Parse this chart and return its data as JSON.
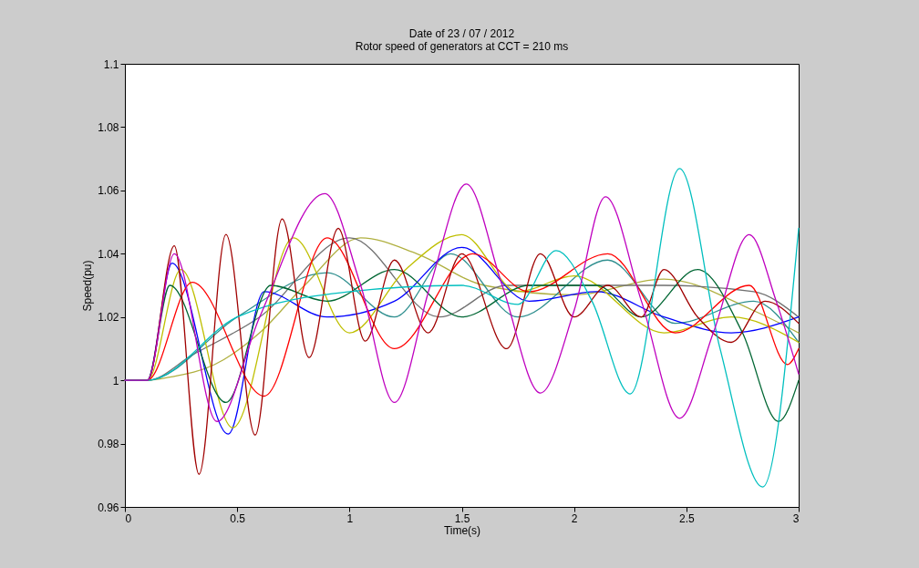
{
  "chart_data": {
    "type": "line",
    "title": "Date of  23 / 07 / 2012",
    "subtitle": "Rotor speed of  generators at CCT = 210 ms",
    "xlabel": "Time(s)",
    "ylabel": "Speed(pu)",
    "xlim": [
      0,
      3
    ],
    "ylim": [
      0.96,
      1.1
    ],
    "xticks": [
      0,
      0.5,
      1,
      1.5,
      2,
      2.5,
      3
    ],
    "yticks": [
      0.96,
      0.98,
      1,
      1.02,
      1.04,
      1.06,
      1.08,
      1.1
    ],
    "grid": false,
    "legend": false,
    "marker": "none",
    "line_style": "solid",
    "series": [
      {
        "color": "#b0b040",
        "x": [
          0,
          0.1,
          0.2,
          0.4,
          0.6,
          0.8,
          1.05,
          1.3,
          1.6,
          2.0,
          2.4,
          2.8,
          3.0
        ],
        "values": [
          1,
          1,
          1.001,
          1.005,
          1.015,
          1.03,
          1.045,
          1.04,
          1.03,
          1.027,
          1.032,
          1.022,
          1.015
        ]
      },
      {
        "color": "#707070",
        "x": [
          0,
          0.1,
          0.3,
          0.6,
          1.0,
          1.4,
          1.7,
          2.1,
          2.4,
          2.8,
          3.0
        ],
        "values": [
          1,
          1,
          1.008,
          1.02,
          1.045,
          1.02,
          1.03,
          1.03,
          1.03,
          1.028,
          1.02
        ]
      },
      {
        "color": "#2f8f8f",
        "x": [
          0,
          0.1,
          0.5,
          0.9,
          1.2,
          1.45,
          1.75,
          2.15,
          2.45,
          2.8,
          3.0
        ],
        "values": [
          1,
          1,
          1.02,
          1.034,
          1.02,
          1.04,
          1.02,
          1.038,
          1.018,
          1.025,
          1.012
        ]
      },
      {
        "color": "#0000ff",
        "x": [
          0,
          0.1,
          0.21,
          0.46,
          0.62,
          0.9,
          1.2,
          1.5,
          1.8,
          2.1,
          2.4,
          2.7,
          3.0
        ],
        "values": [
          1,
          1,
          1.037,
          0.983,
          1.028,
          1.02,
          1.025,
          1.042,
          1.025,
          1.028,
          1.02,
          1.015,
          1.02
        ]
      },
      {
        "color": "#bfbf00",
        "x": [
          0,
          0.1,
          0.25,
          0.48,
          0.75,
          1.0,
          1.25,
          1.5,
          1.75,
          2.0,
          2.4,
          2.7,
          3.0
        ],
        "values": [
          1,
          1,
          1.035,
          0.985,
          1.045,
          1.015,
          1.035,
          1.046,
          1.028,
          1.033,
          1.015,
          1.02,
          1.012
        ]
      },
      {
        "color": "#ff0000",
        "x": [
          0,
          0.1,
          0.3,
          0.62,
          0.9,
          1.2,
          1.55,
          1.8,
          2.15,
          2.45,
          2.78,
          2.95,
          3.0
        ],
        "values": [
          1,
          1,
          1.031,
          0.995,
          1.045,
          1.01,
          1.04,
          1.028,
          1.04,
          1.015,
          1.03,
          1.005,
          1.01
        ]
      },
      {
        "color": "#006633",
        "x": [
          0,
          0.1,
          0.2,
          0.45,
          0.65,
          0.9,
          1.2,
          1.5,
          1.8,
          2.1,
          2.3,
          2.55,
          2.75,
          2.91,
          3.0
        ],
        "values": [
          1,
          1,
          1.03,
          0.993,
          1.03,
          1.025,
          1.035,
          1.02,
          1.03,
          1.03,
          1.02,
          1.035,
          1.015,
          0.987,
          1.0
        ]
      },
      {
        "color": "#a00000",
        "x": [
          0,
          0.1,
          0.22,
          0.33,
          0.45,
          0.58,
          0.7,
          0.82,
          0.95,
          1.07,
          1.2,
          1.35,
          1.5,
          1.7,
          1.85,
          2.0,
          2.15,
          2.3,
          2.4,
          2.55,
          2.7,
          2.85,
          3.0
        ],
        "values": [
          1,
          1,
          1.0425,
          0.9703,
          1.0461,
          0.9827,
          1.051,
          1.0072,
          1.048,
          1.0124,
          1.038,
          1.015,
          1.04,
          1.01,
          1.04,
          1.02,
          1.03,
          1.02,
          1.035,
          1.02,
          1.012,
          1.025,
          1.018
        ]
      },
      {
        "color": "#00bfbf",
        "x": [
          0,
          0.1,
          0.5,
          1.0,
          1.5,
          1.75,
          1.92,
          2.08,
          2.25,
          2.47,
          2.65,
          2.84,
          3.0
        ],
        "values": [
          1,
          1,
          1.02,
          1.028,
          1.03,
          1.024,
          1.041,
          1.025,
          0.9957,
          1.0669,
          1.01,
          0.9663,
          1.048
        ]
      },
      {
        "color": "#bf00bf",
        "x": [
          0,
          0.1,
          0.22,
          0.41,
          0.6,
          0.89,
          1.05,
          1.2,
          1.36,
          1.52,
          1.68,
          1.85,
          2.0,
          2.14,
          2.3,
          2.47,
          2.62,
          2.78,
          2.9,
          3.0
        ],
        "values": [
          1,
          1,
          1.04,
          0.987,
          1.02,
          1.059,
          1.03,
          0.993,
          1.03,
          1.062,
          1.03,
          0.996,
          1.022,
          1.058,
          1.025,
          0.988,
          1.015,
          1.046,
          1.025,
          1.002
        ]
      }
    ]
  }
}
